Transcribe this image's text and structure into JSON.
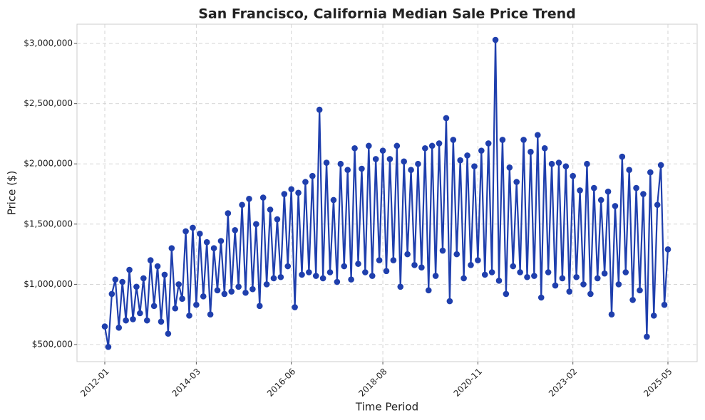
{
  "chart_data": {
    "type": "line",
    "title": "San Francisco, California Median Sale Price Trend",
    "x_label": "Time Period",
    "y_label": "Price ($)",
    "x": [
      "2012-01",
      "2012-02",
      "2012-03",
      "2012-04",
      "2012-05",
      "2012-06",
      "2012-07",
      "2012-08",
      "2012-09",
      "2012-10",
      "2012-11",
      "2012-12",
      "2013-01",
      "2013-02",
      "2013-03",
      "2013-04",
      "2013-05",
      "2013-06",
      "2013-07",
      "2013-08",
      "2013-09",
      "2013-10",
      "2013-11",
      "2013-12",
      "2014-01",
      "2014-02",
      "2014-03",
      "2014-04",
      "2014-05",
      "2014-06",
      "2014-07",
      "2014-08",
      "2014-09",
      "2014-10",
      "2014-11",
      "2014-12",
      "2015-01",
      "2015-02",
      "2015-03",
      "2015-04",
      "2015-05",
      "2015-06",
      "2015-07",
      "2015-08",
      "2015-09",
      "2015-10",
      "2015-11",
      "2015-12",
      "2016-01",
      "2016-02",
      "2016-03",
      "2016-04",
      "2016-05",
      "2016-06",
      "2016-07",
      "2016-08",
      "2016-09",
      "2016-10",
      "2016-11",
      "2016-12",
      "2017-01",
      "2017-02",
      "2017-03",
      "2017-04",
      "2017-05",
      "2017-06",
      "2017-07",
      "2017-08",
      "2017-09",
      "2017-10",
      "2017-11",
      "2017-12",
      "2018-01",
      "2018-02",
      "2018-03",
      "2018-04",
      "2018-05",
      "2018-06",
      "2018-07",
      "2018-08",
      "2018-09",
      "2018-10",
      "2018-11",
      "2018-12",
      "2019-01",
      "2019-02",
      "2019-03",
      "2019-04",
      "2019-05",
      "2019-06",
      "2019-07",
      "2019-08",
      "2019-09",
      "2019-10",
      "2019-11",
      "2019-12",
      "2020-01",
      "2020-02",
      "2020-03",
      "2020-04",
      "2020-05",
      "2020-06",
      "2020-07",
      "2020-08",
      "2020-09",
      "2020-10",
      "2020-11",
      "2020-12",
      "2021-01",
      "2021-02",
      "2021-03",
      "2021-04",
      "2021-05",
      "2021-06",
      "2021-07",
      "2021-08",
      "2021-09",
      "2021-10",
      "2021-11",
      "2021-12",
      "2022-01",
      "2022-02",
      "2022-03",
      "2022-04",
      "2022-05",
      "2022-06",
      "2022-07",
      "2022-08",
      "2022-09",
      "2022-10",
      "2022-11",
      "2022-12",
      "2023-01",
      "2023-02",
      "2023-03",
      "2023-04",
      "2023-05",
      "2023-06",
      "2023-07",
      "2023-08",
      "2023-09",
      "2023-10",
      "2023-11",
      "2023-12",
      "2024-01",
      "2024-02",
      "2024-03",
      "2024-04",
      "2024-05",
      "2024-06",
      "2024-07",
      "2024-08",
      "2024-09",
      "2024-10",
      "2024-11",
      "2024-12",
      "2025-01",
      "2025-02",
      "2025-03",
      "2025-04",
      "2025-05"
    ],
    "series": [
      {
        "name": "Median Sale Price",
        "color": "#1f3fad",
        "values": [
          650000,
          480000,
          920000,
          1040000,
          640000,
          1020000,
          700000,
          1120000,
          710000,
          980000,
          760000,
          1050000,
          700000,
          1200000,
          820000,
          1150000,
          690000,
          1080000,
          590000,
          1300000,
          800000,
          1000000,
          880000,
          1440000,
          740000,
          1470000,
          830000,
          1420000,
          900000,
          1350000,
          750000,
          1300000,
          950000,
          1360000,
          920000,
          1590000,
          940000,
          1450000,
          980000,
          1660000,
          930000,
          1710000,
          960000,
          1500000,
          820000,
          1720000,
          1000000,
          1620000,
          1050000,
          1540000,
          1060000,
          1750000,
          1150000,
          1790000,
          810000,
          1760000,
          1080000,
          1850000,
          1100000,
          1900000,
          1070000,
          2450000,
          1050000,
          2010000,
          1100000,
          1700000,
          1020000,
          2000000,
          1150000,
          1950000,
          1040000,
          2130000,
          1170000,
          1960000,
          1100000,
          2150000,
          1070000,
          2040000,
          1200000,
          2110000,
          1110000,
          2040000,
          1200000,
          2150000,
          980000,
          2020000,
          1250000,
          1950000,
          1160000,
          2000000,
          1140000,
          2130000,
          950000,
          2150000,
          1070000,
          2170000,
          1280000,
          2380000,
          860000,
          2200000,
          1250000,
          2030000,
          1050000,
          2070000,
          1160000,
          1980000,
          1200000,
          2110000,
          1080000,
          2170000,
          1100000,
          3030000,
          1030000,
          2200000,
          920000,
          1970000,
          1150000,
          1850000,
          1100000,
          2200000,
          1060000,
          2100000,
          1070000,
          2240000,
          890000,
          2130000,
          1100000,
          2000000,
          990000,
          2010000,
          1050000,
          1980000,
          940000,
          1900000,
          1060000,
          1780000,
          1000000,
          2000000,
          920000,
          1800000,
          1050000,
          1700000,
          1090000,
          1770000,
          750000,
          1650000,
          1000000,
          2060000,
          1100000,
          1950000,
          870000,
          1800000,
          950000,
          1750000,
          565000,
          1930000,
          740000,
          1660000,
          1990000,
          830000,
          1290000
        ]
      }
    ],
    "xticks": [
      "2012-01",
      "2014-03",
      "2016-06",
      "2018-08",
      "2020-11",
      "2023-02",
      "2025-05"
    ],
    "ylim": [
      358000,
      3160000
    ],
    "yticks": [
      {
        "value": 500000,
        "label": "$500,000"
      },
      {
        "value": 1000000,
        "label": "$1,000,000"
      },
      {
        "value": 1500000,
        "label": "$1,500,000"
      },
      {
        "value": 2000000,
        "label": "$2,000,000"
      },
      {
        "value": 2500000,
        "label": "$2,500,000"
      },
      {
        "value": 3000000,
        "label": "$3,000,000"
      }
    ],
    "grid": true
  }
}
